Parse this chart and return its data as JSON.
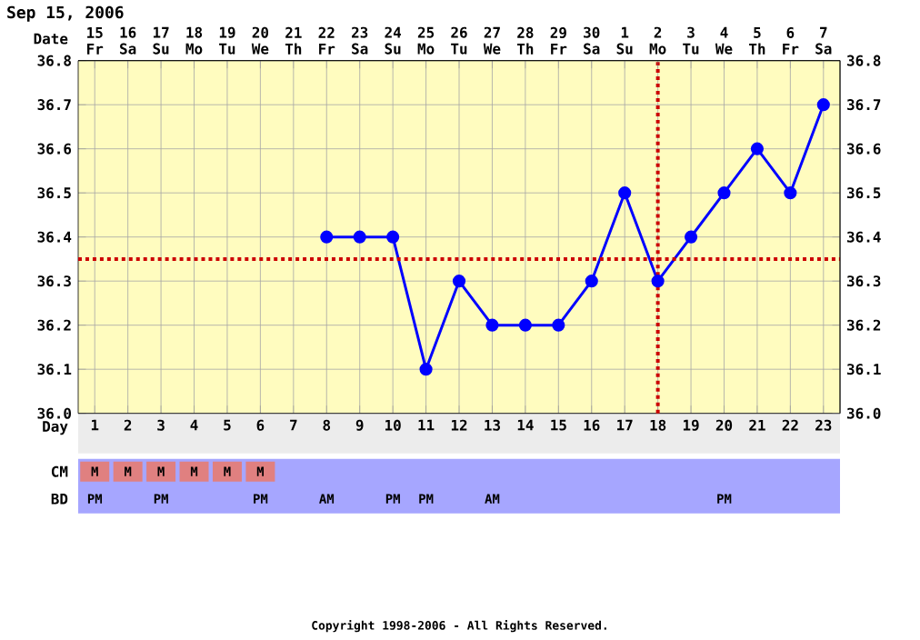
{
  "chart_data": {
    "type": "line",
    "title": "Sep 15, 2006",
    "xlabel": "Day",
    "x2label": "Date",
    "categories": [
      "1",
      "2",
      "3",
      "4",
      "5",
      "6",
      "7",
      "8",
      "9",
      "10",
      "11",
      "12",
      "13",
      "14",
      "15",
      "16",
      "17",
      "18",
      "19",
      "20",
      "21",
      "22",
      "23"
    ],
    "x2lim": [
      "2006-09-14T12:00",
      "2006-10-07T12:00"
    ],
    "x2ticks": [
      {
        "value": "2006-09-15",
        "label": "15 Fr"
      },
      {
        "value": "2006-09-16",
        "label": "16 Sa"
      },
      {
        "value": "2006-09-17",
        "label": "17 Su"
      },
      {
        "value": "2006-09-18",
        "label": "18 Mo"
      },
      {
        "value": "2006-09-19",
        "label": "19 Tu"
      },
      {
        "value": "2006-09-20",
        "label": "20 We"
      },
      {
        "value": "2006-09-21",
        "label": "21 Th"
      },
      {
        "value": "2006-09-22",
        "label": "22 Fr"
      },
      {
        "value": "2006-09-23",
        "label": "23 Sa"
      },
      {
        "value": "2006-09-24",
        "label": "24 Su"
      },
      {
        "value": "2006-09-25",
        "label": "25 Mo"
      },
      {
        "value": "2006-09-26",
        "label": "26 Tu"
      },
      {
        "value": "2006-09-27",
        "label": "27 We"
      },
      {
        "value": "2006-09-28",
        "label": "28 Th"
      },
      {
        "value": "2006-09-29",
        "label": "29 Fr"
      },
      {
        "value": "2006-09-30",
        "label": "30 Sa"
      },
      {
        "value": "2006-10-01",
        "label": "1 Su"
      },
      {
        "value": "2006-10-02",
        "label": "2 Mo"
      },
      {
        "value": "2006-10-03",
        "label": "3 Tu"
      },
      {
        "value": "2006-10-04",
        "label": "4 We"
      },
      {
        "value": "2006-10-05",
        "label": "5 Th"
      },
      {
        "value": "2006-10-06",
        "label": "6 Fr"
      },
      {
        "value": "2006-10-07",
        "label": "7 Sa"
      }
    ],
    "series": [
      {
        "color": "#0000ff",
        "values": [
          null,
          null,
          null,
          null,
          null,
          null,
          null,
          36.4,
          36.4,
          36.4,
          36.1,
          36.3,
          36.2,
          36.2,
          36.2,
          36.3,
          36.5,
          36.3,
          36.4,
          36.5,
          36.6,
          36.5,
          36.7
        ]
      }
    ],
    "ylim": [
      36.0,
      36.8
    ],
    "yticks": [
      {
        "value": 36.0,
        "label": "36.0"
      },
      36.1,
      36.2,
      36.3,
      36.4,
      36.5,
      36.6,
      36.7,
      {
        "value": 36.8,
        "label": "36.8"
      }
    ],
    "y2lim": [
      36.0,
      36.8
    ],
    "y2ticks": [
      {
        "value": 36.0,
        "label": "36.0"
      },
      36.1,
      36.2,
      36.3,
      36.4,
      36.5,
      36.6,
      36.7,
      {
        "value": 36.8,
        "label": "36.8"
      }
    ],
    "grid": true,
    "marker": "circle",
    "line_style": "solid",
    "ref_lines": [
      {
        "axis": "y",
        "value": 36.35,
        "color": "#cc0000",
        "line_style": "dotted"
      },
      {
        "axis": "x",
        "value": "18",
        "color": "#cc0000",
        "line_style": "dotted"
      }
    ],
    "annotations": [
      "CM",
      "M",
      "M",
      "M",
      "M",
      "M",
      "M",
      "BD",
      "PM",
      "PM",
      "PM",
      "AM",
      "PM",
      "PM",
      "AM",
      "PM",
      "Copyright 1998-2006 - All Rights Reserved."
    ]
  }
}
